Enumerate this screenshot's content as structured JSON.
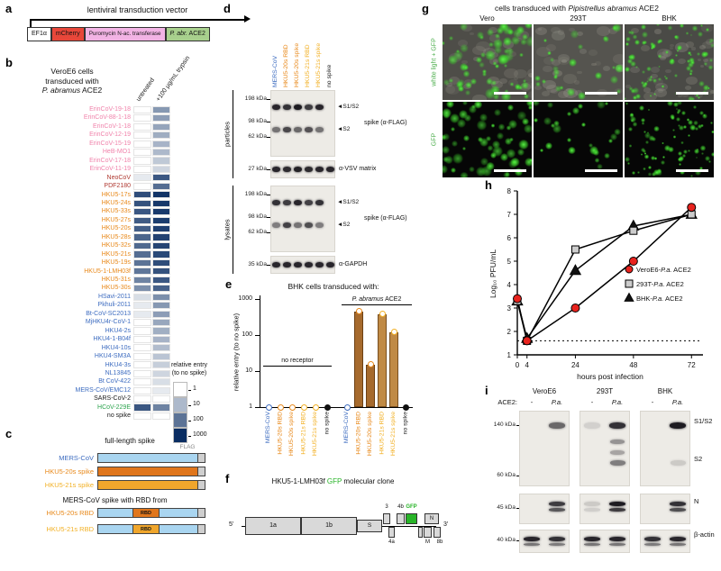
{
  "colors": {
    "blue": "#3d6cc0",
    "orange": "#e8891b",
    "yellow": "#f2b024",
    "pink": "#f083ab",
    "darkred": "#b03931",
    "green": "#2ea44f",
    "black": "#1a1a1a",
    "gfp": "#28b428",
    "red": "#e8231e",
    "gray": "#cccccc"
  },
  "panel_a": {
    "label": "a",
    "title": "lentiviral transduction vector",
    "segments": [
      {
        "parts": [
          {
            "t": "EF1α"
          }
        ],
        "bg": "#ffffff",
        "fs": 7
      },
      {
        "parts": [
          {
            "t": "mCherry"
          }
        ],
        "bg": "#e8473a",
        "fs": 7
      },
      {
        "parts": [
          {
            "t": "Puromycin N-ac. transferase"
          }
        ],
        "bg": "#f2b3e4",
        "fs": 6.3
      },
      {
        "parts": [
          {
            "t": "P. abr.",
            "i": true
          },
          {
            "t": " ACE2"
          }
        ],
        "bg": "#a8d08d",
        "fs": 7
      }
    ]
  },
  "panel_b": {
    "label": "b",
    "title_lines": [
      [
        {
          "t": "VeroE6 cells"
        }
      ],
      [
        {
          "t": "transduced with"
        }
      ],
      [
        {
          "t": "P. abramus",
          "i": true
        },
        {
          "t": " ACE2"
        }
      ]
    ],
    "col_headers": [
      "untreated",
      "+100 μg/mL trypsin"
    ],
    "rows": [
      {
        "name": "ErinCoV-19-18",
        "color": "pink",
        "values": [
          1,
          30
        ]
      },
      {
        "name": "ErinCoV-88-1-18",
        "color": "pink",
        "values": [
          1,
          25
        ]
      },
      {
        "name": "ErinCoV-1-18",
        "color": "pink",
        "values": [
          1,
          20
        ]
      },
      {
        "name": "ErinCoV-12-19",
        "color": "pink",
        "values": [
          1,
          15
        ]
      },
      {
        "name": "ErinCoV-15-19",
        "color": "pink",
        "values": [
          1,
          12
        ]
      },
      {
        "name": "HeB-MO1",
        "color": "pink",
        "values": [
          1,
          10
        ]
      },
      {
        "name": "ErinCoV-17-18",
        "color": "pink",
        "values": [
          1,
          6
        ]
      },
      {
        "name": "ErinCoV-11-19",
        "color": "pink",
        "values": [
          1,
          4
        ]
      },
      {
        "name": "NeoCoV",
        "color": "darkred",
        "values": [
          2,
          250
        ]
      },
      {
        "name": "PDF2180",
        "color": "darkred",
        "values": [
          1,
          120
        ]
      },
      {
        "name": "HKU5-17s",
        "color": "orange",
        "values": [
          350,
          800
        ]
      },
      {
        "name": "HKU5-24s",
        "color": "orange",
        "values": [
          300,
          700
        ]
      },
      {
        "name": "HKU5-33s",
        "color": "orange",
        "values": [
          250,
          650
        ]
      },
      {
        "name": "HKU5-27s",
        "color": "orange",
        "values": [
          220,
          600
        ]
      },
      {
        "name": "HKU5-20s",
        "color": "orange",
        "values": [
          200,
          550
        ]
      },
      {
        "name": "HKU5-28s",
        "color": "orange",
        "values": [
          160,
          500
        ]
      },
      {
        "name": "HKU5-32s",
        "color": "orange",
        "values": [
          140,
          450
        ]
      },
      {
        "name": "HKU5-21s",
        "color": "orange",
        "values": [
          120,
          400
        ]
      },
      {
        "name": "HKU5-19s",
        "color": "orange",
        "values": [
          100,
          350
        ]
      },
      {
        "name": "HKU5-1-LMH03f",
        "color": "orange",
        "values": [
          90,
          300
        ]
      },
      {
        "name": "HKU5-31s",
        "color": "orange",
        "values": [
          60,
          250
        ]
      },
      {
        "name": "HKU5-30s",
        "color": "orange",
        "values": [
          40,
          180
        ]
      },
      {
        "name": "HSavi-2011",
        "color": "blue",
        "values": [
          3,
          40
        ]
      },
      {
        "name": "Pkhuli-2011",
        "color": "blue",
        "values": [
          2,
          30
        ]
      },
      {
        "name": "Bt-CoV-SC2013",
        "color": "blue",
        "values": [
          2,
          25
        ]
      },
      {
        "name": "MjHKU4r-CoV-1",
        "color": "blue",
        "values": [
          1,
          18
        ]
      },
      {
        "name": "HKU4-2s",
        "color": "blue",
        "values": [
          1,
          14
        ]
      },
      {
        "name": "HKU4-1-B04f",
        "color": "blue",
        "values": [
          1,
          12
        ]
      },
      {
        "name": "HKU4-10s",
        "color": "blue",
        "values": [
          1,
          9
        ]
      },
      {
        "name": "HKU4-SM3A",
        "color": "blue",
        "values": [
          1,
          7
        ]
      },
      {
        "name": "HKU4-3s",
        "color": "blue",
        "values": [
          1,
          5
        ]
      },
      {
        "name": "NL13845",
        "color": "blue",
        "values": [
          1,
          4
        ]
      },
      {
        "name": "Bt CoV-422",
        "color": "blue",
        "values": [
          1,
          3
        ]
      },
      {
        "name": "MERS-CoV/EMC12",
        "color": "blue",
        "values": [
          1,
          2
        ]
      },
      {
        "name": "SARS-CoV-2",
        "color": "black",
        "values": [
          1,
          1
        ]
      },
      {
        "name": "HCoV-229E",
        "color": "green",
        "values": [
          250,
          60
        ]
      },
      {
        "name": "no spike",
        "color": "black",
        "values": [
          1,
          1
        ]
      }
    ],
    "legend": {
      "title_lines": [
        "relative entry",
        "(to no spike)"
      ],
      "ticks": [
        1,
        10,
        100,
        1000
      ]
    }
  },
  "panel_c": {
    "label": "c",
    "header_full": "full-length spike",
    "flag_label": "FLAG",
    "header_chimera": "MERS-CoV spike with RBD from",
    "rbd_text": "RBD",
    "rows_full": [
      {
        "name": "MERS-CoV",
        "color": "blue",
        "bar": "#a9d5f0",
        "rbd": null
      },
      {
        "name": "HKU5-20s spike",
        "color": "orange",
        "bar": "#e0761c",
        "rbd": null
      },
      {
        "name": "HKU5-21s spike",
        "color": "yellow",
        "bar": "#f0a62c",
        "rbd": null
      }
    ],
    "rows_chimera": [
      {
        "name": "HKU5-20s RBD",
        "color": "orange",
        "bar": "#a9d5f0",
        "rbd": "#e0761c"
      },
      {
        "name": "HKU5-21s RBD",
        "color": "yellow",
        "bar": "#a9d5f0",
        "rbd": "#f0a62c"
      }
    ]
  },
  "panel_d": {
    "label": "d",
    "lanes": [
      {
        "name": "MERS-CoV",
        "color": "blue"
      },
      {
        "name": "HKU5-20s RBD",
        "color": "orange"
      },
      {
        "name": "HKU5-20s spike",
        "color": "orange"
      },
      {
        "name": "HKU5-21s RBD",
        "color": "yellow"
      },
      {
        "name": "HKU5-21s spike",
        "color": "yellow"
      },
      {
        "name": "no spike",
        "color": "black"
      }
    ],
    "sections": [
      {
        "name": "particles",
        "blots": [
          {
            "right_label": "spike (α-FLAG)",
            "markers": [
              [
                "198 kDa",
                0.14
              ],
              [
                "98 kDa",
                0.47
              ],
              [
                "62 kDa",
                0.7
              ]
            ],
            "bands": [
              {
                "arrow": "S1/S2",
                "frac": 0.26,
                "lanes": [
                  0.9,
                  0.85,
                  0.95,
                  0.8,
                  0.9,
                  0
                ]
              },
              {
                "arrow": "S2",
                "frac": 0.6,
                "lanes": [
                  0.55,
                  0.75,
                  0.6,
                  0.7,
                  0.55,
                  0
                ]
              }
            ]
          },
          {
            "right_label": "α-VSV matrix",
            "markers": [
              [
                "27 kDa",
                0.5
              ]
            ],
            "bands": [
              {
                "arrow": null,
                "frac": 0.5,
                "lanes": [
                  0.9,
                  0.88,
                  0.92,
                  0.88,
                  0.9,
                  0.9
                ]
              }
            ]
          }
        ]
      },
      {
        "name": "lysates",
        "blots": [
          {
            "right_label": "spike (α-FLAG)",
            "markers": [
              [
                "198 kDa",
                0.14
              ],
              [
                "98 kDa",
                0.47
              ],
              [
                "62 kDa",
                0.7
              ]
            ],
            "bands": [
              {
                "arrow": "S1/S2",
                "frac": 0.26,
                "lanes": [
                  0.85,
                  0.8,
                  0.9,
                  0.78,
                  0.85,
                  0
                ]
              },
              {
                "arrow": "S2",
                "frac": 0.6,
                "lanes": [
                  0.5,
                  0.78,
                  0.55,
                  0.72,
                  0.5,
                  0
                ]
              }
            ]
          },
          {
            "right_label": "α-GAPDH",
            "markers": [
              [
                "35 kDa",
                0.5
              ]
            ],
            "bands": [
              {
                "arrow": null,
                "frac": 0.5,
                "lanes": [
                  0.9,
                  0.9,
                  0.9,
                  0.9,
                  0.9,
                  0.9
                ]
              }
            ]
          }
        ]
      }
    ]
  },
  "panel_e": {
    "label": "e",
    "title": "BHK cells transduced with:",
    "ylabel": "relative entry (to no spike)",
    "yticks": [
      1,
      10,
      100,
      1000
    ],
    "categories": [
      "MERS-CoV",
      "HKU5-20s RBD",
      "HKU5-20s spike",
      "HKU5-21s RBD",
      "HKU5-21s spike",
      "no spike"
    ],
    "cat_colors": [
      "blue",
      "orange",
      "orange",
      "yellow",
      "yellow",
      "black"
    ],
    "bar_colors": [
      "#a66a2d",
      "#a66a2d",
      "#a66a2d",
      "#c08a45",
      "#c08a45",
      "#888888"
    ],
    "groups": [
      {
        "name": "no receptor",
        "name_parts": [
          {
            "t": "no receptor"
          }
        ],
        "values": [
          1,
          1,
          1,
          1,
          1,
          1
        ]
      },
      {
        "name": "P. abramus ACE2",
        "name_parts": [
          {
            "t": "P. abramus",
            "i": true
          },
          {
            "t": " ACE2"
          }
        ],
        "values": [
          1,
          450,
          15,
          380,
          120,
          1
        ]
      }
    ]
  },
  "panel_f": {
    "label": "f",
    "title_parts": [
      {
        "t": "HKU5-1-LMH03f "
      },
      {
        "t": "GFP",
        "c": "#28b428"
      },
      {
        "t": " molecular clone"
      }
    ],
    "five_prime": "5'",
    "three_prime": "3'",
    "orfs": [
      {
        "name": "1a"
      },
      {
        "name": "1b"
      },
      {
        "name": "S"
      },
      {
        "name": "3"
      },
      {
        "name": "4a"
      },
      {
        "name": "4b"
      },
      {
        "name": "GFP",
        "color": "#28b428"
      },
      {
        "name": "E"
      },
      {
        "name": "M"
      },
      {
        "name": "N"
      },
      {
        "name": "8b"
      }
    ]
  },
  "panel_g": {
    "label": "g",
    "title_parts": [
      {
        "t": "cells transduced with "
      },
      {
        "t": "Pipistrellus abramus",
        "i": true
      },
      {
        "t": " ACE2"
      }
    ],
    "col_headers": [
      "Vero",
      "293T",
      "BHK"
    ],
    "row_labels": [
      "white light + GFP",
      "GFP"
    ],
    "images": [
      {
        "row": 0,
        "col": 0,
        "bg": "#4e4d48",
        "blobs": 65,
        "rmin": 2,
        "rmax": 6,
        "seed": 3
      },
      {
        "row": 0,
        "col": 1,
        "bg": "#55544f",
        "blobs": 26,
        "rmin": 2,
        "rmax": 5,
        "seed": 5
      },
      {
        "row": 0,
        "col": 2,
        "bg": "#4a4a46",
        "blobs": 95,
        "rmin": 1,
        "rmax": 3.5,
        "seed": 7
      },
      {
        "row": 1,
        "col": 0,
        "bg": "#060606",
        "blobs": 65,
        "rmin": 2,
        "rmax": 6,
        "seed": 11
      },
      {
        "row": 1,
        "col": 1,
        "bg": "#060606",
        "blobs": 26,
        "rmin": 2,
        "rmax": 5,
        "seed": 13
      },
      {
        "row": 1,
        "col": 2,
        "bg": "#060606",
        "blobs": 95,
        "rmin": 1,
        "rmax": 3.5,
        "seed": 17
      }
    ]
  },
  "panel_h": {
    "label": "h",
    "ylabel": "Log₁₀ PFU/mL",
    "xlabel": "hours post infection",
    "yticks": [
      1,
      2,
      3,
      4,
      5,
      6,
      7,
      8
    ],
    "xticks": [
      0,
      4,
      24,
      48,
      72
    ],
    "detection_limit": 1.6,
    "series": [
      {
        "name_pre": "VeroE6-",
        "name_it": "P.a.",
        "name_post": " ACE2",
        "marker": "circle",
        "color": "#e8231e",
        "x": [
          0,
          4,
          24,
          48,
          72
        ],
        "y": [
          3.4,
          1.6,
          3.0,
          5.0,
          7.3
        ]
      },
      {
        "name_pre": "293T-",
        "name_it": "P.a.",
        "name_post": " ACE2",
        "marker": "square",
        "color": "#cccccc",
        "x": [
          0,
          4,
          24,
          48,
          72
        ],
        "y": [
          3.3,
          1.6,
          5.5,
          6.3,
          7.0
        ]
      },
      {
        "name_pre": "BHK-",
        "name_it": "P.a.",
        "name_post": " ACE2",
        "marker": "triangle",
        "color": "#111111",
        "x": [
          0,
          4,
          24,
          48,
          72
        ],
        "y": [
          3.3,
          1.7,
          4.6,
          6.5,
          7.0
        ]
      }
    ]
  },
  "panel_i": {
    "label": "i",
    "ace2_label": "ACE2:",
    "markers": [
      "140 kDa",
      "60 kDa",
      "45 kDa",
      "40 kDa"
    ],
    "band_labels": [
      "S1/S2",
      "S2",
      "N",
      "β-actin"
    ],
    "groups": [
      {
        "name": "VeroE6",
        "lanes": [
          "-",
          "P.a."
        ],
        "spike_s1s2": [
          0,
          0.6
        ],
        "spike_smear": [
          0,
          0
        ],
        "spike_s2": [
          0,
          0
        ],
        "n_bands": [
          0,
          0.8
        ],
        "actin": [
          0.9,
          0.85
        ]
      },
      {
        "name": "293T",
        "lanes": [
          "-",
          "P.a."
        ],
        "spike_s1s2": [
          0.12,
          0.85
        ],
        "spike_smear": [
          0,
          0.4
        ],
        "spike_s2": [
          0,
          0.5
        ],
        "n_bands": [
          0.15,
          0.95
        ],
        "actin": [
          0.9,
          0.9
        ]
      },
      {
        "name": "BHK",
        "lanes": [
          "-",
          "P.a."
        ],
        "spike_s1s2": [
          0,
          0.95
        ],
        "spike_smear": [
          0,
          0
        ],
        "spike_s2": [
          0,
          0.15
        ],
        "n_bands": [
          0,
          0.85
        ],
        "actin": [
          0.85,
          0.9
        ]
      }
    ]
  }
}
